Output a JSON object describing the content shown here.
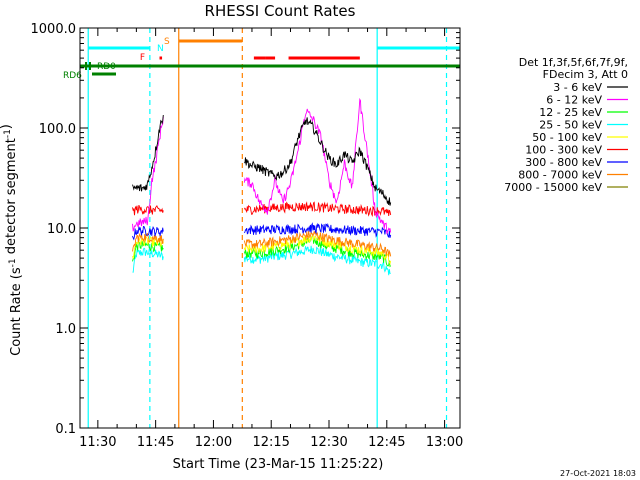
{
  "chart_data": {
    "type": "line",
    "title": "RHESSI Count Rates",
    "xlabel_prefix": "Start Time (",
    "xlabel_date": "23-Mar-15 11:25:22",
    "xlabel_suffix": ")",
    "ylabel": "Count Rate (s^-1 detector segment^-1)",
    "y_scale": "log",
    "ylim": [
      0.1,
      1000
    ],
    "xlim": [
      "11:25:22",
      "13:04:00"
    ],
    "x_ticks": [
      "11:30",
      "11:45",
      "12:00",
      "12:15",
      "12:30",
      "12:45",
      "13:00"
    ],
    "y_ticks": [
      "0.1",
      "1.0",
      "10.0",
      "100.0",
      "1000.0"
    ],
    "footer_date": "27-Oct-2021 18:03",
    "legend": {
      "placement": "right",
      "header": [
        "Det 1f,3f,5f,6f,7f,9f,",
        "FDecim 3, Att 0"
      ],
      "entries": [
        {
          "label": "3 - 6 keV",
          "color": "#000000"
        },
        {
          "label": "6 - 12 keV",
          "color": "#ff00ff"
        },
        {
          "label": "12 - 25 keV",
          "color": "#00ff00"
        },
        {
          "label": "25 - 50 keV",
          "color": "#00ffff"
        },
        {
          "label": "50 - 100 keV",
          "color": "#ffff00"
        },
        {
          "label": "100 - 300 keV",
          "color": "#ff0000"
        },
        {
          "label": "300 - 800 keV",
          "color": "#0000ff"
        },
        {
          "label": "800 - 7000 keV",
          "color": "#ff8000"
        },
        {
          "label": "7000 - 15000 keV",
          "color": "#808000"
        }
      ]
    },
    "flag_labels": [
      {
        "text": "RD0",
        "color": "#008000"
      },
      {
        "text": "RD6",
        "color": "#008000"
      },
      {
        "text": "F",
        "color": "#ff0000"
      },
      {
        "text": "N",
        "color": "#00ffff"
      },
      {
        "text": "S",
        "color": "#ff8000"
      }
    ],
    "series": [
      {
        "color": "#00ffff",
        "segments": [
          [
            [
              "11:39:00",
              3.5
            ],
            [
              "11:40:00",
              5.5
            ],
            [
              "11:42:00",
              5.8
            ],
            [
              "11:45:00",
              5.5
            ],
            [
              "11:47:00",
              5.2
            ]
          ],
          [
            [
              "12:08:00",
              5.0
            ],
            [
              "12:12:00",
              4.9
            ],
            [
              "12:20:00",
              5.5
            ],
            [
              "12:26:00",
              6.2
            ],
            [
              "12:30:00",
              5.4
            ],
            [
              "12:38:00",
              4.6
            ],
            [
              "12:44:00",
              4.3
            ],
            [
              "12:46:00",
              3.5
            ]
          ]
        ]
      },
      {
        "color": "#00ff00",
        "segments": [
          [
            [
              "11:39:00",
              4.5
            ],
            [
              "11:40:00",
              6.6
            ],
            [
              "11:42:00",
              6.8
            ],
            [
              "11:45:00",
              6.5
            ],
            [
              "11:47:00",
              6.3
            ]
          ],
          [
            [
              "12:08:00",
              5.6
            ],
            [
              "12:12:00",
              5.6
            ],
            [
              "12:20:00",
              6.4
            ],
            [
              "12:26:00",
              7.6
            ],
            [
              "12:30:00",
              6.5
            ],
            [
              "12:38:00",
              5.5
            ],
            [
              "12:44:00",
              5.1
            ],
            [
              "12:46:00",
              4.2
            ]
          ]
        ]
      },
      {
        "color": "#ffff00",
        "segments": [
          [
            [
              "11:39:00",
              5.0
            ],
            [
              "11:40:00",
              7.3
            ],
            [
              "11:42:00",
              7.4
            ],
            [
              "11:45:00",
              7.2
            ],
            [
              "11:47:00",
              7.0
            ]
          ],
          [
            [
              "12:08:00",
              6.2
            ],
            [
              "12:12:00",
              6.2
            ],
            [
              "12:20:00",
              7.0
            ],
            [
              "12:26:00",
              8.2
            ],
            [
              "12:30:00",
              7.1
            ],
            [
              "12:38:00",
              6.1
            ],
            [
              "12:44:00",
              5.6
            ],
            [
              "12:46:00",
              4.7
            ]
          ]
        ]
      },
      {
        "color": "#ff8000",
        "segments": [
          [
            [
              "11:39:00",
              5.5
            ],
            [
              "11:40:00",
              8.0
            ],
            [
              "11:42:00",
              8.2
            ],
            [
              "11:45:00",
              8.0
            ],
            [
              "11:47:00",
              7.8
            ]
          ],
          [
            [
              "12:08:00",
              6.9
            ],
            [
              "12:12:00",
              6.9
            ],
            [
              "12:20:00",
              7.8
            ],
            [
              "12:26:00",
              8.7
            ],
            [
              "12:30:00",
              7.8
            ],
            [
              "12:38:00",
              6.8
            ],
            [
              "12:44:00",
              6.2
            ],
            [
              "12:46:00",
              5.2
            ]
          ]
        ]
      },
      {
        "color": "#0000ff",
        "segments": [
          [
            [
              "11:39:00",
              8.0
            ],
            [
              "11:40:00",
              9.5
            ],
            [
              "11:42:00",
              9.4
            ],
            [
              "11:45:00",
              9.3
            ],
            [
              "11:47:00",
              9.2
            ]
          ],
          [
            [
              "12:08:00",
              9.6
            ],
            [
              "12:12:00",
              9.6
            ],
            [
              "12:20:00",
              9.8
            ],
            [
              "12:26:00",
              10.0
            ],
            [
              "12:30:00",
              9.8
            ],
            [
              "12:38:00",
              9.4
            ],
            [
              "12:44:00",
              9.2
            ],
            [
              "12:46:00",
              8.5
            ]
          ]
        ]
      },
      {
        "color": "#ff0000",
        "segments": [
          [
            [
              "11:39:00",
              14.5
            ],
            [
              "11:40:00",
              15.5
            ],
            [
              "11:42:00",
              15.3
            ],
            [
              "11:45:00",
              15.0
            ],
            [
              "11:47:00",
              15.0
            ]
          ],
          [
            [
              "12:08:00",
              15.2
            ],
            [
              "12:12:00",
              15.6
            ],
            [
              "12:20:00",
              16.3
            ],
            [
              "12:26:00",
              16.5
            ],
            [
              "12:30:00",
              15.8
            ],
            [
              "12:38:00",
              15.2
            ],
            [
              "12:44:00",
              14.8
            ],
            [
              "12:46:00",
              13.5
            ]
          ]
        ]
      },
      {
        "color": "#ff00ff",
        "segments": [
          [
            [
              "11:39:00",
              10.0
            ],
            [
              "11:40:00",
              11.0
            ],
            [
              "11:42:00",
              11.5
            ],
            [
              "11:43:00",
              12.0
            ],
            [
              "11:44:00",
              30
            ],
            [
              "11:45:00",
              45
            ],
            [
              "11:46:00",
              80
            ],
            [
              "11:47:00",
              130
            ]
          ],
          [
            [
              "12:08:00",
              30
            ],
            [
              "12:10:00",
              28
            ],
            [
              "12:12:00",
              18
            ],
            [
              "12:14:00",
              15
            ],
            [
              "12:16:00",
              30
            ],
            [
              "12:18:00",
              18
            ],
            [
              "12:20:00",
              28
            ],
            [
              "12:22:00",
              60
            ],
            [
              "12:24:00",
              150
            ],
            [
              "12:26:00",
              120
            ],
            [
              "12:28:00",
              80
            ],
            [
              "12:30:00",
              30
            ],
            [
              "12:32:00",
              18
            ],
            [
              "12:34:00",
              45
            ],
            [
              "12:36:00",
              25
            ],
            [
              "12:38:00",
              190
            ],
            [
              "12:40:00",
              55
            ],
            [
              "12:42:00",
              15
            ],
            [
              "12:44:00",
              11
            ],
            [
              "12:46:00",
              9
            ]
          ]
        ]
      },
      {
        "color": "#000000",
        "segments": [
          [
            [
              "11:39:00",
              25
            ],
            [
              "11:42:00",
              25
            ],
            [
              "11:43:00",
              28
            ],
            [
              "11:44:00",
              40
            ],
            [
              "11:45:00",
              60
            ],
            [
              "11:46:00",
              100
            ],
            [
              "11:47:00",
              135
            ]
          ],
          [
            [
              "12:08:00",
              48
            ],
            [
              "12:10:00",
              42
            ],
            [
              "12:12:00",
              40
            ],
            [
              "12:14:00",
              36
            ],
            [
              "12:16:00",
              33
            ],
            [
              "12:18:00",
              36
            ],
            [
              "12:20:00",
              45
            ],
            [
              "12:22:00",
              80
            ],
            [
              "12:24:00",
              120
            ],
            [
              "12:26:00",
              100
            ],
            [
              "12:28:00",
              70
            ],
            [
              "12:30:00",
              50
            ],
            [
              "12:32:00",
              43
            ],
            [
              "12:34:00",
              55
            ],
            [
              "12:36:00",
              45
            ],
            [
              "12:38:00",
              60
            ],
            [
              "12:40:00",
              40
            ],
            [
              "12:42:00",
              25
            ],
            [
              "12:44:00",
              22
            ],
            [
              "12:46:00",
              18
            ]
          ]
        ]
      }
    ]
  }
}
